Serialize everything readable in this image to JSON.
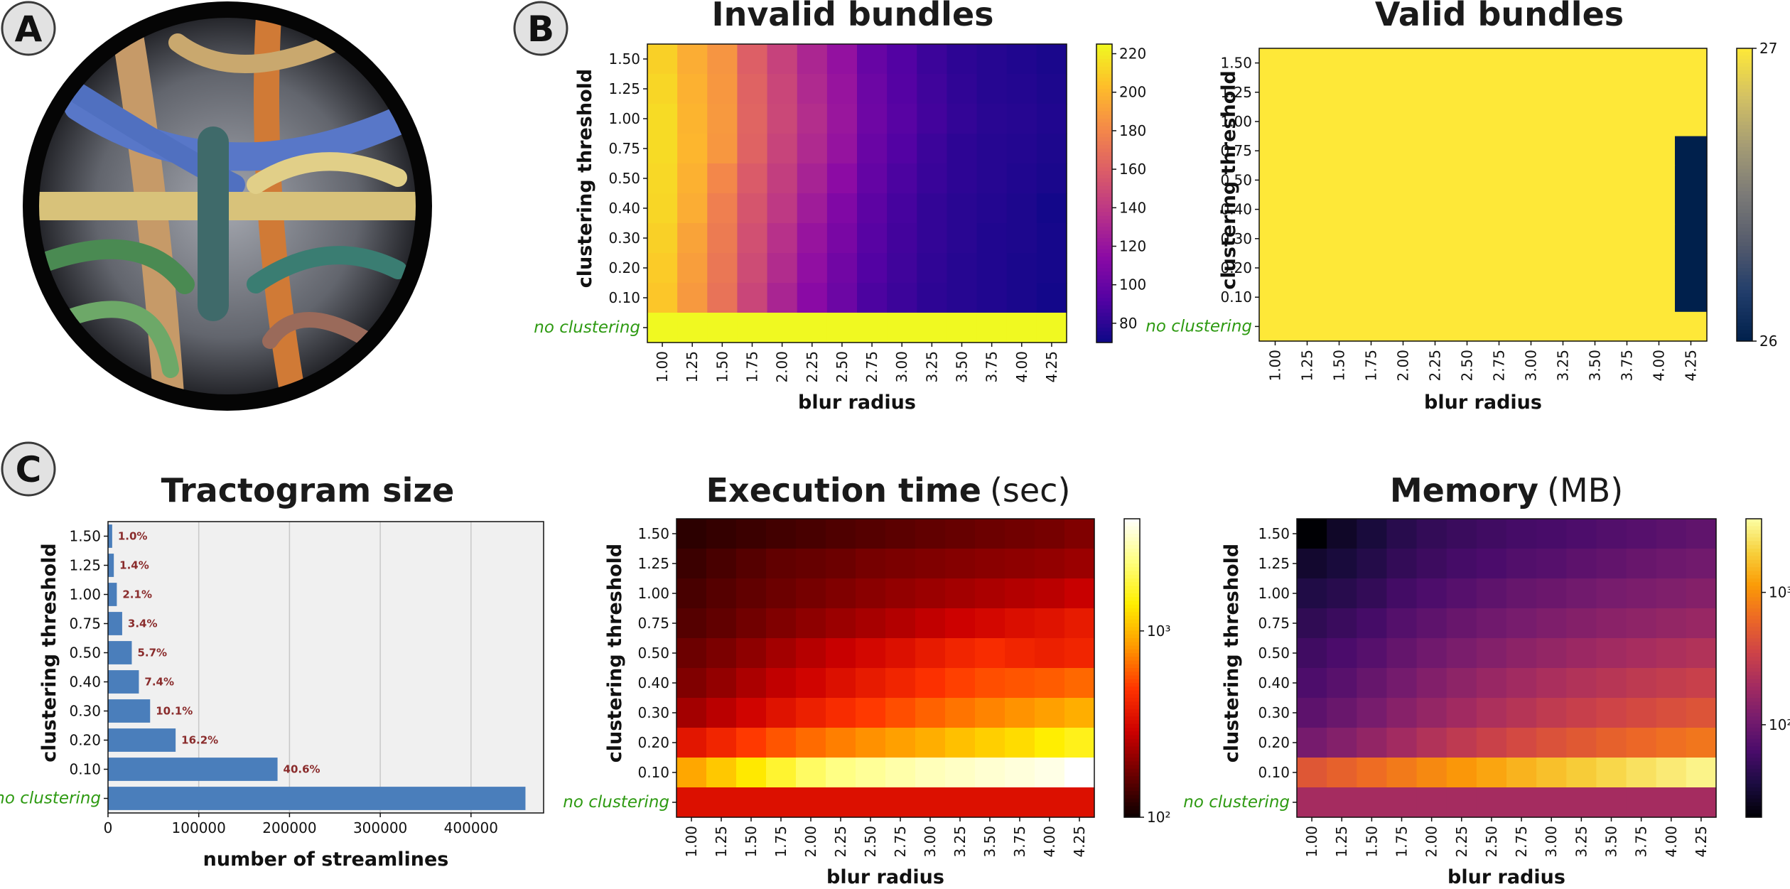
{
  "panel_labels": {
    "a": "A",
    "b": "B",
    "c": "C"
  },
  "chart_data": [
    {
      "id": "invalid",
      "type": "heatmap",
      "title": "Invalid bundles",
      "title_unit": "",
      "xlabel": "blur radius",
      "ylabel": "clustering  threshold",
      "x": [
        "1.00",
        "1.25",
        "1.50",
        "1.75",
        "2.00",
        "2.25",
        "2.50",
        "2.75",
        "3.00",
        "3.25",
        "3.50",
        "3.75",
        "4.00",
        "4.25"
      ],
      "y": [
        "1.50",
        "1.25",
        "1.00",
        "0.75",
        "0.50",
        "0.40",
        "0.30",
        "0.20",
        "0.10",
        "no clustering"
      ],
      "colormap": "plasma",
      "scale": "linear",
      "vmin": 70,
      "vmax": 225,
      "colorbar_ticks": [
        "220",
        "200",
        "180",
        "160",
        "140",
        "120",
        "100",
        "80"
      ],
      "colorbar_tick_values": [
        220,
        200,
        180,
        160,
        140,
        120,
        100,
        80
      ],
      "values": [
        [
          210,
          196,
          186,
          160,
          145,
          130,
          118,
          100,
          92,
          85,
          80,
          78,
          76,
          74
        ],
        [
          212,
          198,
          187,
          162,
          147,
          132,
          120,
          102,
          93,
          86,
          81,
          78,
          77,
          75
        ],
        [
          214,
          199,
          188,
          163,
          148,
          134,
          121,
          103,
          94,
          87,
          82,
          79,
          78,
          76
        ],
        [
          214,
          200,
          187,
          162,
          146,
          132,
          119,
          101,
          92,
          85,
          80,
          78,
          77,
          75
        ],
        [
          213,
          198,
          180,
          158,
          143,
          128,
          115,
          99,
          90,
          84,
          80,
          78,
          76,
          74
        ],
        [
          212,
          196,
          176,
          155,
          140,
          124,
          110,
          96,
          88,
          82,
          79,
          77,
          75,
          72
        ],
        [
          210,
          192,
          174,
          152,
          136,
          120,
          107,
          94,
          87,
          82,
          79,
          76,
          75,
          73
        ],
        [
          208,
          190,
          172,
          150,
          133,
          117,
          104,
          92,
          86,
          81,
          78,
          76,
          74,
          73
        ],
        [
          206,
          188,
          170,
          147,
          129,
          114,
          102,
          90,
          85,
          80,
          78,
          76,
          74,
          72
        ],
        [
          238,
          238,
          238,
          238,
          238,
          238,
          238,
          238,
          238,
          238,
          238,
          238,
          238,
          238
        ]
      ]
    },
    {
      "id": "valid",
      "type": "heatmap",
      "title": "Valid bundles",
      "title_unit": "",
      "xlabel": "blur radius",
      "ylabel": "clustering  threshold",
      "x": [
        "1.00",
        "1.25",
        "1.50",
        "1.75",
        "2.00",
        "2.25",
        "2.50",
        "2.75",
        "3.00",
        "3.25",
        "3.50",
        "3.75",
        "4.00",
        "4.25"
      ],
      "y": [
        "1.50",
        "1.25",
        "1.00",
        "0.75",
        "0.50",
        "0.40",
        "0.30",
        "0.20",
        "0.10",
        "no clustering"
      ],
      "colormap": "cividis",
      "scale": "linear",
      "vmin": 26,
      "vmax": 27,
      "colorbar_ticks": [
        "27",
        "26"
      ],
      "colorbar_tick_values": [
        27,
        26
      ],
      "values": [
        [
          27,
          27,
          27,
          27,
          27,
          27,
          27,
          27,
          27,
          27,
          27,
          27,
          27,
          27
        ],
        [
          27,
          27,
          27,
          27,
          27,
          27,
          27,
          27,
          27,
          27,
          27,
          27,
          27,
          27
        ],
        [
          27,
          27,
          27,
          27,
          27,
          27,
          27,
          27,
          27,
          27,
          27,
          27,
          27,
          27
        ],
        [
          27,
          27,
          27,
          27,
          27,
          27,
          27,
          27,
          27,
          27,
          27,
          27,
          27,
          26
        ],
        [
          27,
          27,
          27,
          27,
          27,
          27,
          27,
          27,
          27,
          27,
          27,
          27,
          27,
          26
        ],
        [
          27,
          27,
          27,
          27,
          27,
          27,
          27,
          27,
          27,
          27,
          27,
          27,
          27,
          26
        ],
        [
          27,
          27,
          27,
          27,
          27,
          27,
          27,
          27,
          27,
          27,
          27,
          27,
          27,
          26
        ],
        [
          27,
          27,
          27,
          27,
          27,
          27,
          27,
          27,
          27,
          27,
          27,
          27,
          27,
          26
        ],
        [
          27,
          27,
          27,
          27,
          27,
          27,
          27,
          27,
          27,
          27,
          27,
          27,
          27,
          26
        ],
        [
          27,
          27,
          27,
          27,
          27,
          27,
          27,
          27,
          27,
          27,
          27,
          27,
          27,
          27
        ]
      ]
    },
    {
      "id": "tractogram",
      "type": "bar",
      "orientation": "horizontal",
      "title": "Tractogram size",
      "xlabel": "number of streamlines",
      "ylabel": "clustering  threshold",
      "categories": [
        "1.50",
        "1.25",
        "1.00",
        "0.75",
        "0.50",
        "0.40",
        "0.30",
        "0.20",
        "0.10",
        "no clustering"
      ],
      "values": [
        4600,
        6400,
        9700,
        15600,
        26200,
        34000,
        46400,
        74500,
        186800,
        460000
      ],
      "percent_labels": [
        "1.0%",
        "1.4%",
        "2.1%",
        "3.4%",
        "5.7%",
        "7.4%",
        "10.1%",
        "16.2%",
        "40.6%",
        ""
      ],
      "xlim": [
        0,
        480000
      ],
      "xticks": [
        0,
        100000,
        200000,
        300000,
        400000
      ],
      "xtick_labels": [
        "0",
        "100000",
        "200000",
        "300000",
        "400000"
      ],
      "grid": true,
      "bar_color": "#4a7ebb"
    },
    {
      "id": "exec",
      "type": "heatmap",
      "title": "Execution time",
      "title_unit": "(sec)",
      "xlabel": "blur radius",
      "ylabel": "clustering  threshold",
      "x": [
        "1.00",
        "1.25",
        "1.50",
        "1.75",
        "2.00",
        "2.25",
        "2.50",
        "2.75",
        "3.00",
        "3.25",
        "3.50",
        "3.75",
        "4.00",
        "4.25"
      ],
      "y": [
        "1.50",
        "1.25",
        "1.00",
        "0.75",
        "0.50",
        "0.40",
        "0.30",
        "0.20",
        "0.10",
        "no clustering"
      ],
      "colormap": "hot",
      "scale": "log",
      "vmin": 100,
      "vmax": 4000,
      "colorbar_ticks": [
        "10³",
        "10²"
      ],
      "colorbar_tick_values": [
        1000,
        100
      ],
      "values": [
        [
          120,
          125,
          130,
          135,
          140,
          145,
          150,
          155,
          160,
          165,
          170,
          175,
          180,
          190
        ],
        [
          130,
          140,
          150,
          160,
          165,
          170,
          180,
          185,
          190,
          195,
          200,
          205,
          210,
          220
        ],
        [
          140,
          150,
          160,
          170,
          180,
          190,
          200,
          210,
          220,
          230,
          240,
          250,
          260,
          280
        ],
        [
          150,
          160,
          175,
          190,
          205,
          220,
          235,
          250,
          270,
          290,
          310,
          330,
          350,
          380
        ],
        [
          170,
          185,
          205,
          230,
          255,
          280,
          310,
          340,
          380,
          420,
          450,
          420,
          400,
          420
        ],
        [
          190,
          210,
          240,
          270,
          300,
          340,
          380,
          420,
          470,
          520,
          560,
          580,
          600,
          640
        ],
        [
          230,
          260,
          300,
          350,
          400,
          450,
          500,
          560,
          620,
          680,
          740,
          800,
          860,
          940
        ],
        [
          360,
          420,
          500,
          580,
          650,
          720,
          790,
          860,
          940,
          1050,
          1150,
          1250,
          1400,
          1550
        ],
        [
          900,
          1100,
          1350,
          1700,
          2100,
          2400,
          2600,
          2800,
          3000,
          3150,
          3300,
          3450,
          3600,
          4000
        ],
        [
          340,
          340,
          340,
          340,
          340,
          340,
          340,
          340,
          340,
          340,
          340,
          340,
          340,
          340
        ]
      ]
    },
    {
      "id": "memory",
      "type": "heatmap",
      "title": "Memory",
      "title_unit": "(MB)",
      "xlabel": "blur radius",
      "ylabel": "clustering  threshold",
      "x": [
        "1.00",
        "1.25",
        "1.50",
        "1.75",
        "2.00",
        "2.25",
        "2.50",
        "2.75",
        "3.00",
        "3.25",
        "3.50",
        "3.75",
        "4.00",
        "4.25"
      ],
      "y": [
        "1.50",
        "1.25",
        "1.00",
        "0.75",
        "0.50",
        "0.40",
        "0.30",
        "0.20",
        "0.10",
        "no clustering"
      ],
      "colormap": "inferno",
      "scale": "log",
      "vmin": 20,
      "vmax": 3600,
      "colorbar_ticks": [
        "10³",
        "10²"
      ],
      "colorbar_tick_values": [
        1000,
        100
      ],
      "values": [
        [
          20,
          28,
          34,
          42,
          48,
          52,
          56,
          60,
          62,
          66,
          70,
          74,
          78,
          84
        ],
        [
          30,
          34,
          40,
          48,
          54,
          60,
          64,
          70,
          74,
          80,
          86,
          92,
          98,
          104
        ],
        [
          38,
          42,
          48,
          58,
          66,
          74,
          82,
          90,
          96,
          104,
          112,
          118,
          124,
          132
        ],
        [
          46,
          52,
          60,
          72,
          82,
          92,
          102,
          112,
          122,
          132,
          142,
          150,
          160,
          170
        ],
        [
          56,
          64,
          74,
          88,
          102,
          116,
          130,
          146,
          160,
          176,
          192,
          206,
          220,
          236
        ],
        [
          66,
          76,
          90,
          108,
          128,
          148,
          170,
          192,
          214,
          236,
          258,
          280,
          300,
          324
        ],
        [
          80,
          94,
          112,
          136,
          162,
          190,
          220,
          252,
          286,
          320,
          354,
          388,
          422,
          460
        ],
        [
          110,
          130,
          158,
          194,
          236,
          282,
          332,
          386,
          442,
          500,
          560,
          620,
          680,
          744
        ],
        [
          480,
          560,
          660,
          780,
          920,
          1080,
          1260,
          1460,
          1680,
          1920,
          2180,
          2460,
          2760,
          3100
        ],
        [
          200,
          200,
          200,
          200,
          200,
          200,
          200,
          200,
          200,
          200,
          200,
          200,
          200,
          200
        ]
      ]
    }
  ],
  "colors": {
    "noclust_green": "#2e9a12",
    "bar_blue": "#4a7ebb",
    "pct_red": "#8a2c2c",
    "plot_bg": "#f0f0f0"
  }
}
